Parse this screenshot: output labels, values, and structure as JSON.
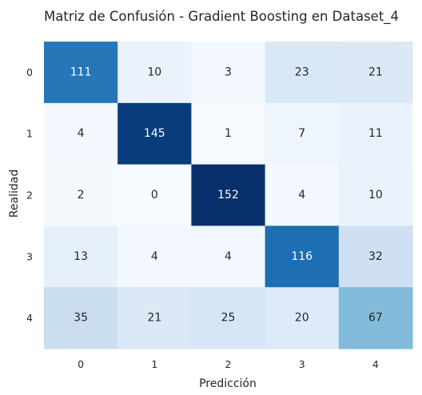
{
  "chart_data": {
    "type": "heatmap",
    "title": "Matriz de Confusión - Gradient Boosting en Dataset_4",
    "xlabel": "Predicción",
    "ylabel": "Realidad",
    "x_categories": [
      "0",
      "1",
      "2",
      "3",
      "4"
    ],
    "y_categories": [
      "0",
      "1",
      "2",
      "3",
      "4"
    ],
    "values": [
      [
        111,
        10,
        3,
        23,
        21
      ],
      [
        4,
        145,
        1,
        7,
        11
      ],
      [
        2,
        0,
        152,
        4,
        10
      ],
      [
        13,
        4,
        4,
        116,
        32
      ],
      [
        35,
        21,
        25,
        20,
        67
      ]
    ],
    "colormap": "Blues",
    "colorbar": false,
    "grid": false,
    "value_range": [
      0,
      152
    ]
  }
}
